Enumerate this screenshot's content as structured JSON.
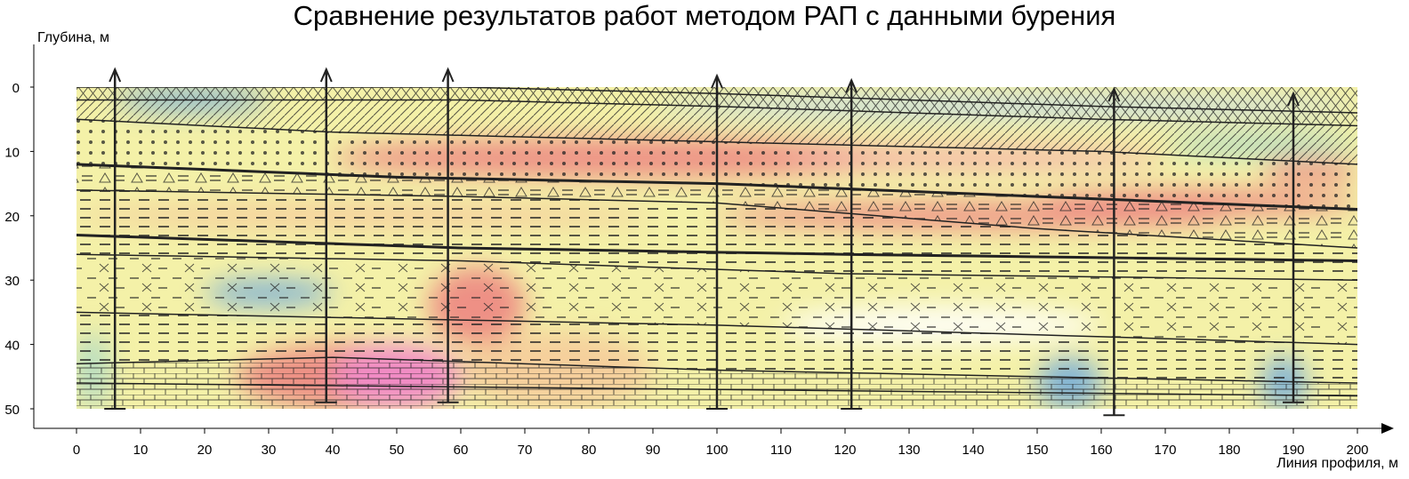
{
  "title": "Сравнение результатов работ методом РАП с данными бурения",
  "chart_data": {
    "type": "geological-section",
    "ylabel": "Глубина, м",
    "xlabel": "Линия профиля, м",
    "xlim": [
      0,
      200
    ],
    "ylim": [
      0,
      50
    ],
    "y_inverted": true,
    "x_ticks": [
      0,
      10,
      20,
      30,
      40,
      50,
      60,
      70,
      80,
      90,
      100,
      110,
      120,
      130,
      140,
      150,
      160,
      170,
      180,
      190,
      200
    ],
    "y_ticks": [
      0,
      10,
      20,
      30,
      40,
      50
    ],
    "boreholes": [
      {
        "x": 6,
        "bottom": 50
      },
      {
        "x": 39,
        "bottom": 49
      },
      {
        "x": 58,
        "bottom": 49
      },
      {
        "x": 100,
        "bottom": 50
      },
      {
        "x": 121,
        "bottom": 50
      },
      {
        "x": 162,
        "bottom": 51
      },
      {
        "x": 190,
        "bottom": 49
      }
    ],
    "layer_boundaries": [
      {
        "x": [
          0,
          60,
          100,
          160,
          200
        ],
        "depth": [
          0,
          0,
          1,
          3,
          4
        ]
      },
      {
        "x": [
          0,
          60,
          100,
          160,
          200
        ],
        "depth": [
          2,
          2,
          3,
          5,
          6
        ]
      },
      {
        "x": [
          0,
          40,
          80,
          120,
          160,
          200
        ],
        "depth": [
          5,
          7,
          8,
          9,
          10,
          12
        ]
      },
      {
        "x": [
          0,
          50,
          100,
          150,
          200
        ],
        "depth": [
          12,
          14,
          15,
          17,
          19
        ]
      },
      {
        "x": [
          0,
          60,
          100,
          150,
          200
        ],
        "depth": [
          16,
          17,
          18,
          22,
          25
        ]
      },
      {
        "x": [
          0,
          60,
          120,
          200
        ],
        "depth": [
          23,
          25,
          26,
          27
        ]
      },
      {
        "x": [
          0,
          60,
          120,
          200
        ],
        "depth": [
          26,
          27,
          29,
          30
        ]
      },
      {
        "x": [
          0,
          100,
          200
        ],
        "depth": [
          35,
          37,
          40
        ]
      },
      {
        "x": [
          0,
          40,
          100,
          200
        ],
        "depth": [
          43,
          42,
          44,
          46
        ]
      },
      {
        "x": [
          0,
          100,
          200
        ],
        "depth": [
          46,
          47,
          48
        ]
      }
    ],
    "colors": {
      "low": "#6fa8dc",
      "mid_low": "#a8d8c8",
      "mid": "#f4f1a8",
      "mid_high": "#f6c99a",
      "high": "#ec7f7f",
      "very_high": "#f28bd0",
      "outline": "#222222"
    }
  }
}
